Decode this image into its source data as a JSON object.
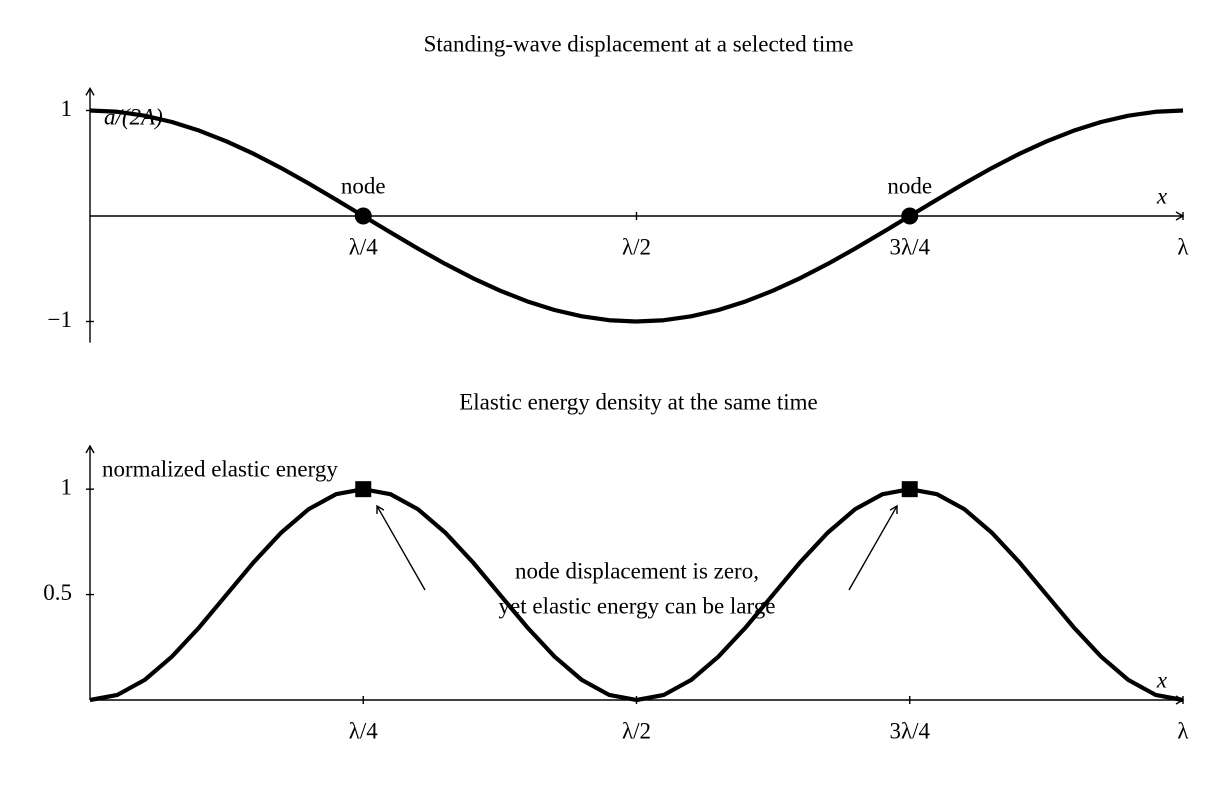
{
  "chart_data": [
    {
      "type": "line",
      "title": "Standing-wave displacement at a selected time",
      "x_label": "x",
      "y_label": "a/(2A)",
      "x": [
        0,
        0.025,
        0.05,
        0.075,
        0.1,
        0.125,
        0.15,
        0.175,
        0.2,
        0.225,
        0.25,
        0.275,
        0.3,
        0.325,
        0.35,
        0.375,
        0.4,
        0.425,
        0.45,
        0.475,
        0.5,
        0.525,
        0.55,
        0.575,
        0.6,
        0.625,
        0.65,
        0.675,
        0.7,
        0.725,
        0.75,
        0.775,
        0.8,
        0.825,
        0.85,
        0.875,
        0.9,
        0.925,
        0.95,
        0.975,
        1
      ],
      "values": [
        1,
        0.988,
        0.951,
        0.891,
        0.809,
        0.707,
        0.588,
        0.454,
        0.309,
        0.156,
        0,
        -0.156,
        -0.309,
        -0.454,
        -0.588,
        -0.707,
        -0.809,
        -0.891,
        -0.951,
        -0.988,
        -1,
        -0.988,
        -0.951,
        -0.891,
        -0.809,
        -0.707,
        -0.588,
        -0.454,
        -0.309,
        -0.156,
        0,
        0.156,
        0.309,
        0.454,
        0.588,
        0.707,
        0.809,
        0.891,
        0.951,
        0.988,
        1
      ],
      "color": "#000000",
      "xlim": [
        0,
        1
      ],
      "ylim": [
        -1.2,
        1.2
      ],
      "xticks": [
        {
          "value": 0.25,
          "label": "λ/4"
        },
        {
          "value": 0.5,
          "label": "λ/2"
        },
        {
          "value": 0.75,
          "label": "3λ/4"
        },
        {
          "value": 1,
          "label": "λ"
        }
      ],
      "yticks": [
        1,
        {
          "value": -1,
          "label": "−1"
        }
      ],
      "points": {
        "marker": "circle",
        "x": [
          0.25,
          0.75
        ],
        "y": [
          0,
          0
        ],
        "labels": [
          "node",
          "node"
        ]
      }
    },
    {
      "type": "line",
      "title": "Elastic energy density at the same time",
      "x_label": "x",
      "y_label": "normalized elastic energy",
      "x": [
        0,
        0.025,
        0.05,
        0.075,
        0.1,
        0.125,
        0.15,
        0.175,
        0.2,
        0.225,
        0.25,
        0.275,
        0.3,
        0.325,
        0.35,
        0.375,
        0.4,
        0.425,
        0.45,
        0.475,
        0.5,
        0.525,
        0.55,
        0.575,
        0.6,
        0.625,
        0.65,
        0.675,
        0.7,
        0.725,
        0.75,
        0.775,
        0.8,
        0.825,
        0.85,
        0.875,
        0.9,
        0.925,
        0.95,
        0.975,
        1
      ],
      "values": [
        0,
        0.024,
        0.095,
        0.206,
        0.345,
        0.5,
        0.655,
        0.794,
        0.905,
        0.976,
        1,
        0.976,
        0.905,
        0.794,
        0.655,
        0.5,
        0.345,
        0.206,
        0.095,
        0.024,
        0,
        0.024,
        0.095,
        0.206,
        0.345,
        0.5,
        0.655,
        0.794,
        0.905,
        0.976,
        1,
        0.976,
        0.905,
        0.794,
        0.655,
        0.5,
        0.345,
        0.206,
        0.095,
        0.024,
        0
      ],
      "color": "#000000",
      "xlim": [
        0,
        1
      ],
      "ylim": [
        0,
        1.2
      ],
      "xticks": [
        {
          "value": 0.25,
          "label": "λ/4"
        },
        {
          "value": 0.5,
          "label": "λ/2"
        },
        {
          "value": 0.75,
          "label": "3λ/4"
        },
        {
          "value": 1,
          "label": "λ"
        }
      ],
      "yticks": [
        0.5,
        1
      ],
      "points": {
        "marker": "square",
        "x": [
          0.25,
          0.75
        ],
        "y": [
          1,
          1
        ]
      },
      "annotation": [
        "node displacement is zero,",
        "yet elastic energy can be large"
      ]
    }
  ]
}
